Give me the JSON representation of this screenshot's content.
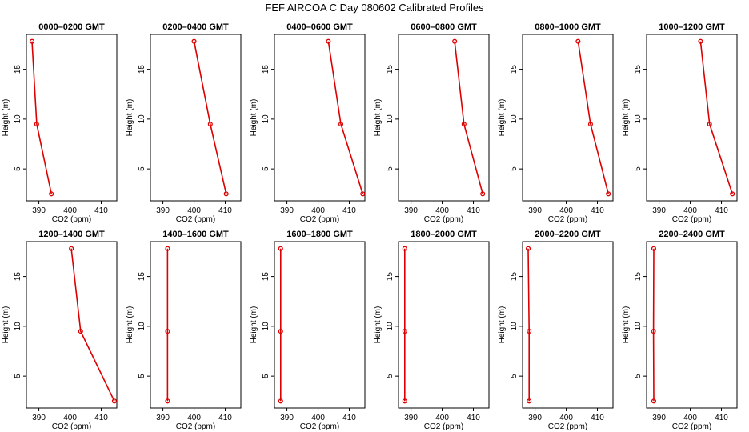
{
  "title": "FEF AIRCOA C  Day 080602  Calibrated Profiles",
  "colors": {
    "series": "#dd0000",
    "axis": "#000000"
  },
  "chart_data": {
    "type": "line",
    "xlabel": "CO2 (ppm)",
    "ylabel": "Height (m)",
    "xlim": [
      386,
      415
    ],
    "ylim": [
      1.8,
      18.5
    ],
    "xticks": [
      390,
      400,
      410
    ],
    "yticks": [
      5,
      10,
      15
    ],
    "grid": false,
    "panels": [
      {
        "title": "0000–0200 GMT",
        "x": [
          387.8,
          389.3,
          394.0
        ],
        "y": [
          17.8,
          9.5,
          2.5
        ]
      },
      {
        "title": "0200–0400 GMT",
        "x": [
          400.0,
          405.2,
          410.3
        ],
        "y": [
          17.8,
          9.5,
          2.5
        ]
      },
      {
        "title": "0400–0600 GMT",
        "x": [
          403.3,
          407.3,
          414.3
        ],
        "y": [
          17.8,
          9.5,
          2.5
        ]
      },
      {
        "title": "0600–0800 GMT",
        "x": [
          404.0,
          407.0,
          413.0
        ],
        "y": [
          17.8,
          9.5,
          2.5
        ]
      },
      {
        "title": "0800–1000 GMT",
        "x": [
          403.8,
          407.8,
          413.5
        ],
        "y": [
          17.8,
          9.5,
          2.5
        ]
      },
      {
        "title": "1000–1200 GMT",
        "x": [
          403.3,
          406.2,
          413.5
        ],
        "y": [
          17.8,
          9.5,
          2.5
        ]
      },
      {
        "title": "1200–1400 GMT",
        "x": [
          400.4,
          403.4,
          414.2
        ],
        "y": [
          17.8,
          9.5,
          2.5
        ]
      },
      {
        "title": "1400–1600 GMT",
        "x": [
          391.5,
          391.5,
          391.5
        ],
        "y": [
          17.8,
          9.5,
          2.5
        ]
      },
      {
        "title": "1600–1800 GMT",
        "x": [
          388.0,
          388.0,
          388.0
        ],
        "y": [
          17.8,
          9.5,
          2.5
        ]
      },
      {
        "title": "1800–2000 GMT",
        "x": [
          388.0,
          388.0,
          388.0
        ],
        "y": [
          17.8,
          9.5,
          2.5
        ]
      },
      {
        "title": "2000–2200 GMT",
        "x": [
          387.8,
          388.1,
          388.1
        ],
        "y": [
          17.8,
          9.5,
          2.5
        ]
      },
      {
        "title": "2200–2400 GMT",
        "x": [
          388.3,
          388.2,
          388.3
        ],
        "y": [
          17.8,
          9.5,
          2.5
        ]
      }
    ]
  }
}
